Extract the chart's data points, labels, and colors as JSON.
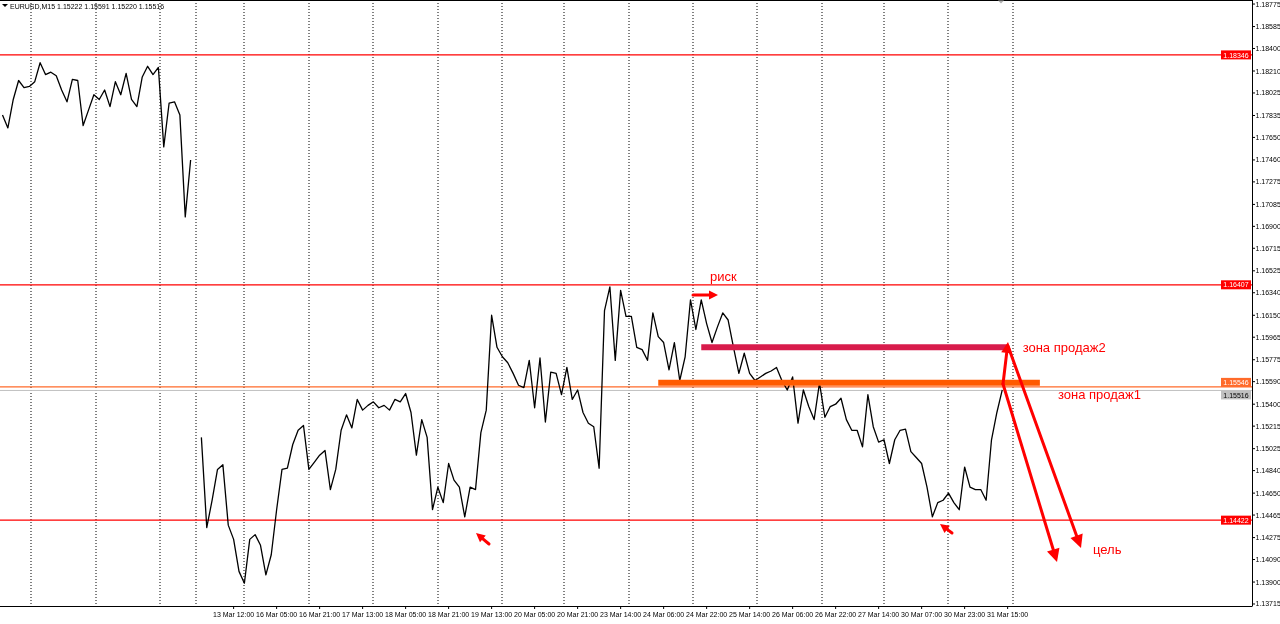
{
  "chart_data": {
    "type": "line",
    "title": "EURUSD,M15 1.15222 1.15591 1.15220 1.15516",
    "categories": [
      null,
      null,
      null,
      null,
      null,
      null,
      null,
      null,
      null,
      null,
      null,
      null,
      null,
      null,
      null,
      null,
      null,
      null,
      null,
      null,
      null,
      null,
      null,
      null,
      null,
      null,
      null,
      null,
      null,
      null,
      null,
      null,
      null,
      null,
      null,
      null,
      null,
      null,
      null,
      null,
      null,
      null,
      null,
      "13 Mar 12:00",
      null,
      null,
      null,
      null,
      null,
      null,
      null,
      "16 Mar 05:00",
      null,
      null,
      null,
      null,
      null,
      null,
      null,
      "16 Mar 21:00",
      null,
      null,
      null,
      null,
      null,
      null,
      null,
      "17 Mar 13:00",
      null,
      null,
      null,
      null,
      null,
      null,
      null,
      "18 Mar 05:00",
      null,
      null,
      null,
      null,
      null,
      null,
      null,
      "18 Mar 21:00",
      null,
      null,
      null,
      null,
      null,
      null,
      null,
      "19 Mar 13:00",
      null,
      null,
      null,
      null,
      null,
      null,
      null,
      "20 Mar 05:00",
      null,
      null,
      null,
      null,
      null,
      null,
      null,
      "20 Mar 21:00",
      null,
      null,
      null,
      null,
      null,
      null,
      null,
      "23 Mar 14:00",
      null,
      null,
      null,
      null,
      null,
      null,
      null,
      "24 Mar 06:00",
      null,
      null,
      null,
      null,
      null,
      null,
      null,
      "24 Mar 22:00",
      null,
      null,
      null,
      null,
      null,
      null,
      null,
      "25 Mar 14:00",
      null,
      null,
      null,
      null,
      null,
      null,
      null,
      "26 Mar 06:00",
      null,
      null,
      null,
      null,
      null,
      null,
      null,
      "26 Mar 22:00",
      null,
      null,
      null,
      null,
      null,
      null,
      null,
      "27 Mar 14:00",
      null,
      null,
      null,
      null,
      null,
      null,
      null,
      "30 Mar 07:00",
      null,
      null,
      null,
      null,
      null,
      null,
      null,
      "30 Mar 23:00",
      null,
      null,
      null,
      null,
      null,
      null,
      null,
      "31 Mar 15:00",
      null,
      null,
      null,
      null,
      null,
      null,
      null,
      null,
      null,
      null,
      null,
      null,
      null,
      null,
      null,
      null,
      null,
      null,
      null,
      null,
      null,
      null,
      null,
      null,
      null,
      null,
      null,
      null,
      null,
      null,
      null,
      null,
      null,
      null,
      null,
      null,
      null,
      null,
      null,
      null,
      null,
      null,
      null,
      null,
      null
    ],
    "ylim": [
      1.13698,
      1.18809
    ],
    "yticks": [
      {
        "value": 1.18775,
        "label": "1.18775"
      },
      {
        "value": 1.18585,
        "label": "1.18585"
      },
      {
        "value": 1.184,
        "label": "1.18400"
      },
      {
        "value": 1.1821,
        "label": "1.18210"
      },
      {
        "value": 1.18025,
        "label": "1.18025"
      },
      {
        "value": 1.17835,
        "label": "1.17835"
      },
      {
        "value": 1.1765,
        "label": "1.17650"
      },
      {
        "value": 1.1746,
        "label": "1.17460"
      },
      {
        "value": 1.17275,
        "label": "1.17275"
      },
      {
        "value": 1.17085,
        "label": "1.17085"
      },
      {
        "value": 1.169,
        "label": "1.16900"
      },
      {
        "value": 1.16715,
        "label": "1.16715"
      },
      {
        "value": 1.16525,
        "label": "1.16525"
      },
      {
        "value": 1.1634,
        "label": "1.16340"
      },
      {
        "value": 1.1615,
        "label": "1.16150"
      },
      {
        "value": 1.15965,
        "label": "1.15965"
      },
      {
        "value": 1.15775,
        "label": "1.15775"
      },
      {
        "value": 1.1559,
        "label": "1.15590"
      },
      {
        "value": 1.154,
        "label": "1.15400"
      },
      {
        "value": 1.15215,
        "label": "1.15215"
      },
      {
        "value": 1.15025,
        "label": "1.15025"
      },
      {
        "value": 1.1484,
        "label": "1.14840"
      },
      {
        "value": 1.1465,
        "label": "1.14650"
      },
      {
        "value": 1.14465,
        "label": "1.14465"
      },
      {
        "value": 1.14275,
        "label": "1.14275"
      },
      {
        "value": 1.1409,
        "label": "1.14090"
      },
      {
        "value": 1.139,
        "label": "1.13900"
      },
      {
        "value": 1.13715,
        "label": "1.13715"
      }
    ],
    "series": [
      {
        "color": "#000000",
        "values": [
          1.1784,
          1.1773,
          1.1797,
          1.1813,
          1.1807,
          1.1808,
          1.1812,
          1.1828,
          1.1818,
          1.182,
          1.1817,
          1.1805,
          1.1795,
          1.1814,
          1.1813,
          1.1775,
          1.1788,
          1.1801,
          1.1797,
          1.1805,
          1.1791,
          1.1812,
          1.1801,
          1.1819,
          1.1797,
          1.1791,
          1.1816,
          1.1825,
          1.1818,
          1.1824,
          1.1757,
          1.1794,
          1.1795,
          1.1784,
          1.1698,
          1.1746,
          null,
          1.1512,
          1.1436,
          1.1459,
          1.1485,
          1.1489,
          1.1438,
          1.1426,
          1.1399,
          1.1389,
          1.1426,
          1.143,
          1.1421,
          1.1396,
          1.1413,
          1.1451,
          1.1485,
          1.1486,
          1.1506,
          1.1518,
          1.1522,
          1.1485,
          1.1491,
          1.1497,
          1.1501,
          1.1468,
          1.1485,
          1.1518,
          1.1531,
          1.152,
          1.1544,
          1.1535,
          1.1539,
          1.1542,
          1.1537,
          1.1539,
          1.1535,
          1.1544,
          1.1542,
          1.1549,
          1.1533,
          1.1497,
          1.1527,
          1.1512,
          1.1451,
          1.147,
          1.1457,
          1.149,
          1.1476,
          1.147,
          1.1445,
          1.147,
          1.1468,
          1.1516,
          1.1535,
          1.1615,
          1.1588,
          1.158,
          1.1575,
          1.1566,
          1.1556,
          1.1554,
          1.1577,
          1.1537,
          1.1579,
          1.1525,
          1.1567,
          1.1566,
          1.1548,
          1.1571,
          1.1544,
          1.1552,
          1.1533,
          1.1524,
          1.1521,
          1.1486,
          1.1619,
          1.1639,
          1.1577,
          1.1636,
          1.1614,
          1.1614,
          1.1588,
          1.1586,
          1.1577,
          1.1617,
          1.1597,
          1.1592,
          1.1569,
          1.1592,
          1.156,
          1.158,
          1.1628,
          1.1603,
          1.1628,
          1.1608,
          1.1592,
          1.1605,
          1.1617,
          1.1611,
          1.1588,
          1.1566,
          1.1583,
          1.1566,
          1.156,
          1.1563,
          1.1566,
          1.1568,
          1.1571,
          1.156,
          1.1552,
          1.1563,
          1.1524,
          1.1552,
          1.1538,
          1.1527,
          1.1558,
          1.1529,
          1.1538,
          1.154,
          1.1545,
          1.1527,
          1.1518,
          1.1518,
          1.1504,
          1.1548,
          1.1521,
          1.1508,
          1.151,
          1.149,
          1.151,
          1.1518,
          1.1519,
          1.15,
          1.1495,
          1.149,
          1.147,
          1.1445,
          1.1457,
          1.1459,
          1.1465,
          1.1457,
          1.1451,
          1.1487,
          1.147,
          1.1468,
          1.1468,
          1.1459,
          1.151,
          1.1533,
          1.1552,
          null,
          null,
          null,
          null,
          null,
          null,
          null,
          null,
          null,
          null,
          null,
          null,
          null,
          null,
          null,
          null,
          null,
          null,
          null,
          null,
          null,
          null,
          null,
          null,
          null,
          null,
          null,
          null,
          null,
          null,
          null,
          null,
          null,
          null,
          null,
          null,
          null,
          null,
          null,
          null,
          null,
          null,
          null,
          null,
          null,
          null
        ]
      },
      {
        "color": "#ff5a00",
        "values": [
          null,
          null,
          null,
          null,
          null,
          null,
          null,
          null,
          null,
          null,
          null,
          null,
          null,
          null,
          null,
          null,
          null,
          null,
          null,
          null,
          null,
          null,
          null,
          null,
          null,
          null,
          null,
          null,
          null,
          null,
          null,
          null,
          null,
          null,
          null,
          null,
          null,
          null,
          null,
          null,
          null,
          null,
          null,
          null,
          null,
          null,
          null,
          null,
          null,
          null,
          null,
          null,
          null,
          null,
          null,
          null,
          null,
          null,
          null,
          null,
          null,
          null,
          null,
          null,
          null,
          null,
          null,
          null,
          null,
          null,
          null,
          null,
          null,
          null,
          null,
          null,
          null,
          null,
          null,
          null,
          null,
          null,
          null,
          null,
          null,
          null,
          null,
          null,
          null,
          null,
          null,
          null,
          null,
          null,
          null,
          null,
          null,
          null,
          null,
          null,
          null,
          null,
          null,
          null,
          null,
          null,
          null,
          null,
          null,
          null,
          null,
          null,
          null,
          null,
          null,
          null,
          null,
          null,
          null,
          null,
          null,
          null,
          1.1558,
          1.1558,
          1.1558,
          1.1558,
          1.1558,
          1.1558,
          1.1558,
          1.1558,
          1.1558,
          1.1558,
          1.1558,
          1.1558,
          1.1558,
          1.1558,
          1.1558,
          1.1558,
          1.1558,
          1.1558,
          1.1558,
          1.1558,
          1.1558,
          1.1558,
          1.1558,
          1.1558,
          1.1558,
          1.1558,
          1.1558,
          1.1558,
          1.1558,
          1.1558,
          1.1558,
          1.1558,
          1.1558,
          1.1558,
          1.1558,
          1.1558,
          1.1558,
          1.1558,
          1.1558,
          1.1558,
          1.1558,
          1.1558,
          1.1558,
          1.1558,
          1.1558,
          1.1558,
          1.1558,
          1.1558,
          1.1558,
          1.1558,
          1.1558,
          1.1558,
          1.1558,
          1.1558,
          1.1558,
          1.1558,
          1.1558,
          1.1558,
          1.1558,
          1.1558,
          1.1558,
          1.1558,
          1.1558,
          1.1558,
          1.1558,
          1.1558,
          1.1558,
          1.1558,
          1.1558,
          1.1558,
          1.1558,
          1.1558,
          null,
          null,
          null,
          null,
          null,
          null,
          null,
          null,
          null,
          null,
          null,
          null,
          null,
          null,
          null,
          null,
          null,
          null,
          null,
          null,
          null,
          null,
          null,
          null,
          null,
          null,
          null,
          null,
          null,
          null,
          null,
          null,
          null,
          null,
          null,
          null,
          null,
          null,
          null
        ]
      },
      {
        "color": "#d81b4b",
        "values": [
          null,
          null,
          null,
          null,
          null,
          null,
          null,
          null,
          null,
          null,
          null,
          null,
          null,
          null,
          null,
          null,
          null,
          null,
          null,
          null,
          null,
          null,
          null,
          null,
          null,
          null,
          null,
          null,
          null,
          null,
          null,
          null,
          null,
          null,
          null,
          null,
          null,
          null,
          null,
          null,
          null,
          null,
          null,
          null,
          null,
          null,
          null,
          null,
          null,
          null,
          null,
          null,
          null,
          null,
          null,
          null,
          null,
          null,
          null,
          null,
          null,
          null,
          null,
          null,
          null,
          null,
          null,
          null,
          null,
          null,
          null,
          null,
          null,
          null,
          null,
          null,
          null,
          null,
          null,
          null,
          null,
          null,
          null,
          null,
          null,
          null,
          null,
          null,
          null,
          null,
          null,
          null,
          null,
          null,
          null,
          null,
          null,
          null,
          null,
          null,
          null,
          null,
          null,
          null,
          null,
          null,
          null,
          null,
          null,
          null,
          null,
          null,
          null,
          null,
          null,
          null,
          null,
          null,
          null,
          null,
          null,
          null,
          null,
          null,
          null,
          null,
          null,
          null,
          null,
          null,
          1.1588,
          1.1588,
          1.1588,
          1.1588,
          1.1588,
          1.1588,
          1.1588,
          1.1588,
          1.1588,
          1.1588,
          1.1588,
          1.1588,
          1.1588,
          1.1588,
          1.1588,
          1.1588,
          1.1588,
          1.1588,
          1.1588,
          1.1588,
          1.1588,
          1.1588,
          1.1588,
          1.1588,
          1.1588,
          1.1588,
          1.1588,
          1.1588,
          1.1588,
          1.1588,
          1.1588,
          1.1588,
          1.1588,
          1.1588,
          1.1588,
          1.1588,
          1.1588,
          1.1588,
          1.1588,
          1.1588,
          1.1588,
          1.1588,
          1.1588,
          1.1588,
          1.1588,
          1.1588,
          1.1588,
          1.1588,
          1.1588,
          1.1588,
          1.1588,
          1.1588,
          1.1588,
          1.1588,
          1.1588,
          1.1588,
          1.1588,
          1.1588,
          null,
          null,
          null,
          null,
          null,
          null,
          null,
          null,
          null,
          null,
          null,
          null,
          null,
          null,
          null,
          null,
          null,
          null,
          null,
          null,
          null,
          null,
          null,
          null,
          null,
          null,
          null,
          null,
          null,
          null,
          null,
          null,
          null,
          null,
          null,
          null,
          null,
          null,
          null,
          null,
          null,
          null,
          null,
          null,
          null
        ]
      }
    ],
    "ref_lines": [
      {
        "axis": "y",
        "value": 1.18346,
        "label": "1.18346",
        "color": "#ff0000",
        "line_style": "solid"
      },
      {
        "axis": "y",
        "value": 1.16407,
        "label": "1.16407",
        "color": "#ff0000",
        "line_style": "solid"
      },
      {
        "axis": "y",
        "value": 1.15546,
        "label": "1.15546",
        "color": "#ff6a2a",
        "line_style": "solid"
      },
      {
        "axis": "y",
        "value": 1.15516,
        "label": "1.15516",
        "color": "#c0c0c0",
        "line_style": "solid"
      },
      {
        "axis": "y",
        "value": 1.14422,
        "label": "1.14422",
        "color": "#ff0000",
        "line_style": "solid"
      }
    ],
    "annotations": [
      "риск",
      {
        "text": "зона продаж2",
        "x": "31 Mar 15:00",
        "y": 1.1588
      },
      "зона продаж1",
      "цель"
    ]
  }
}
